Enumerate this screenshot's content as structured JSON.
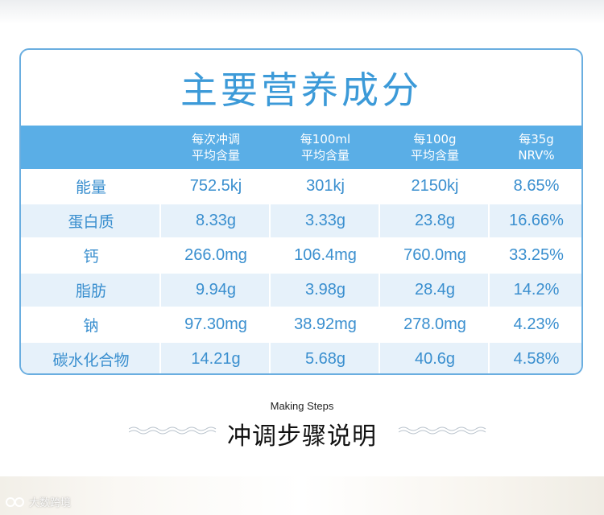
{
  "title": "主要营养成分",
  "columns": [
    {
      "line1": "每次冲调",
      "line2": "平均含量"
    },
    {
      "line1": "每100ml",
      "line2": "平均含量"
    },
    {
      "line1": "每100g",
      "line2": "平均含量"
    },
    {
      "line1": "每35g",
      "line2": "NRV%"
    }
  ],
  "rows": [
    {
      "name": "能量",
      "values": [
        "752.5kj",
        "301kj",
        "2150kj",
        "8.65%"
      ]
    },
    {
      "name": "蛋白质",
      "values": [
        "8.33g",
        "3.33g",
        "23.8g",
        "16.66%"
      ]
    },
    {
      "name": "钙",
      "values": [
        "266.0mg",
        "106.4mg",
        "760.0mg",
        "33.25%"
      ]
    },
    {
      "name": "脂肪",
      "values": [
        "9.94g",
        "3.98g",
        "28.4g",
        "14.2%"
      ]
    },
    {
      "name": "钠",
      "values": [
        "97.30mg",
        "38.92mg",
        "278.0mg",
        "4.23%"
      ]
    },
    {
      "name": "碳水化合物",
      "values": [
        "14.21g",
        "5.68g",
        "40.6g",
        "4.58%"
      ]
    }
  ],
  "steps": {
    "subtitle_en": "Making Steps",
    "title_cn": "冲调步骤说明"
  },
  "watermark": {
    "text": "大数跨境",
    "icon": "logo-icon"
  },
  "colors": {
    "accent": "#3c9ad8",
    "header_bg": "#5aaee6",
    "alt_row_bg": "#e6f1fa",
    "border": "#6aaee0"
  }
}
